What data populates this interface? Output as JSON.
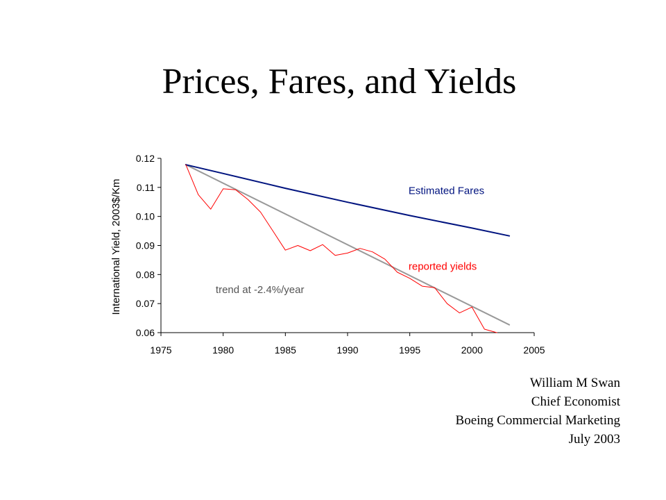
{
  "slide": {
    "title": "Prices, Fares, and Yields"
  },
  "byline": {
    "name": "William M Swan",
    "role": "Chief Economist",
    "organization": "Boeing Commercial Marketing",
    "date": "July 2003"
  },
  "chart_data": {
    "type": "line",
    "title": "",
    "xlabel": "",
    "ylabel": "International Yield, 2003$/Km",
    "xlim": [
      1975,
      2005
    ],
    "ylim": [
      0.06,
      0.12
    ],
    "x_ticks": [
      1975,
      1980,
      1985,
      1990,
      1995,
      2000,
      2005
    ],
    "y_ticks": [
      0.06,
      0.07,
      0.08,
      0.09,
      0.1,
      0.11,
      0.12
    ],
    "y_tick_labels": [
      "0.06",
      "0.07",
      "0.08",
      "0.09",
      "0.10",
      "0.11",
      "0.12"
    ],
    "grid": false,
    "legend": "none",
    "series": [
      {
        "name": "Estimated Fares",
        "color": "#00137f",
        "x": [
          1977,
          1980,
          1985,
          1990,
          1995,
          2000,
          2003
        ],
        "y": [
          0.1178,
          0.1148,
          0.1097,
          0.1049,
          0.1003,
          0.096,
          0.0933
        ]
      },
      {
        "name": "reported yields",
        "color": "#ff0000",
        "x": [
          1977,
          1978,
          1979,
          1980,
          1981,
          1982,
          1983,
          1984,
          1985,
          1986,
          1987,
          1988,
          1989,
          1990,
          1991,
          1992,
          1993,
          1994,
          1995,
          1996,
          1997,
          1998,
          1999,
          2000,
          2001,
          2002
        ],
        "y": [
          0.1178,
          0.1075,
          0.1025,
          0.1095,
          0.1092,
          0.1058,
          0.1015,
          0.095,
          0.0884,
          0.09,
          0.0882,
          0.0903,
          0.0866,
          0.0874,
          0.089,
          0.0878,
          0.0853,
          0.0808,
          0.0787,
          0.076,
          0.0755,
          0.07,
          0.0668,
          0.0688,
          0.0612,
          0.06
        ]
      },
      {
        "name": "trend at -2.4%/year",
        "color": "#999999",
        "x": [
          1977,
          2003
        ],
        "y": [
          0.1178,
          0.0627
        ]
      }
    ],
    "annotations": [
      {
        "text": "Estimated Fares",
        "x": 1994.9,
        "y": 0.1077,
        "color": "#00137f"
      },
      {
        "text": "reported yields",
        "x": 1994.9,
        "y": 0.0816,
        "color": "#ff0000"
      },
      {
        "text": "trend at -2.4%/year",
        "x": 1979.4,
        "y": 0.0736,
        "color": "#555555"
      }
    ]
  }
}
